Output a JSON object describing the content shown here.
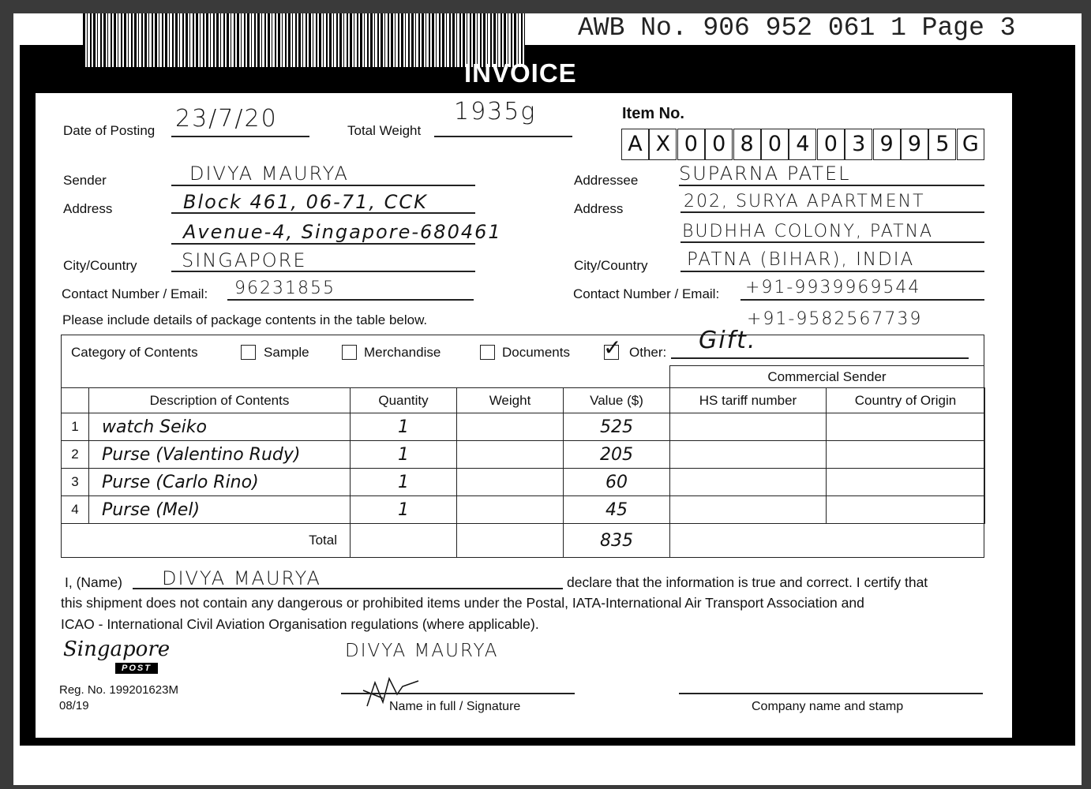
{
  "header": {
    "awb": "AWB No. 906 952 061 1  Page 3",
    "title": "INVOICE"
  },
  "posting": {
    "date_label": "Date of Posting",
    "date": "23/7/20",
    "weight_label": "Total Weight",
    "weight": "1935g",
    "item_label": "Item No.",
    "item_chars": [
      "A",
      "X",
      "0",
      "0",
      "8",
      "0",
      "4",
      "0",
      "3",
      "9",
      "9",
      "5",
      "G"
    ]
  },
  "sender": {
    "label": "Sender",
    "name": "DIVYA MAURYA",
    "address_label": "Address",
    "address1": "Block 461, 06-71, CCK",
    "address2": "Avenue-4, Singapore-680461",
    "city_label": "City/Country",
    "city": "SINGAPORE",
    "contact_label": "Contact Number / Email:",
    "contact": "96231855"
  },
  "addressee": {
    "label": "Addressee",
    "name": "SUPARNA PATEL",
    "address_label": "Address",
    "address1": "202, SURYA APARTMENT",
    "address2": "BUDHHA COLONY, PATNA",
    "city_label": "City/Country",
    "city": "PATNA (BIHAR), INDIA",
    "contact_label": "Contact Number / Email:",
    "contact": "+91-9939969544",
    "contact2": "+91-9582567739"
  },
  "instructions": "Please include details of package contents in the table below.",
  "category": {
    "label": "Category of Contents",
    "options": [
      {
        "label": "Sample",
        "checked": false
      },
      {
        "label": "Merchandise",
        "checked": false
      },
      {
        "label": "Documents",
        "checked": false
      },
      {
        "label": "Other:",
        "checked": true
      }
    ],
    "other_value": "Gift."
  },
  "table": {
    "commercial_sender": "Commercial Sender",
    "headers": [
      "Description of Contents",
      "Quantity",
      "Weight",
      "Value ($)",
      "HS tariff number",
      "Country of Origin"
    ],
    "rows": [
      {
        "n": "1",
        "desc": "watch Seiko",
        "qty": "1",
        "weight": "",
        "value": "525",
        "hs": "",
        "origin": ""
      },
      {
        "n": "2",
        "desc": "Purse (Valentino Rudy)",
        "qty": "1",
        "weight": "",
        "value": "205",
        "hs": "",
        "origin": ""
      },
      {
        "n": "3",
        "desc": "Purse (Carlo Rino)",
        "qty": "1",
        "weight": "",
        "value": "60",
        "hs": "",
        "origin": ""
      },
      {
        "n": "4",
        "desc": "Purse (Mel)",
        "qty": "1",
        "weight": "",
        "value": "45",
        "hs": "",
        "origin": ""
      }
    ],
    "total_label": "Total",
    "total_value": "835"
  },
  "declaration": {
    "prefix": "I, (Name)",
    "name": "DIVYA MAURYA",
    "line1": "declare that the information is true and correct. I certify that",
    "line2": "this shipment does not contain any dangerous or prohibited items under the Postal, IATA-International Air Transport Association and",
    "line3": "ICAO - International Civil Aviation Organisation regulations (where applicable)."
  },
  "footer": {
    "logo_text": "Singapore",
    "logo_badge": "POST",
    "reg_no": "Reg. No. 199201623M",
    "version": "08/19",
    "signed_name": "DIVYA MAURYA",
    "signature_label": "Name in full / Signature",
    "stamp_label": "Company name and stamp"
  }
}
